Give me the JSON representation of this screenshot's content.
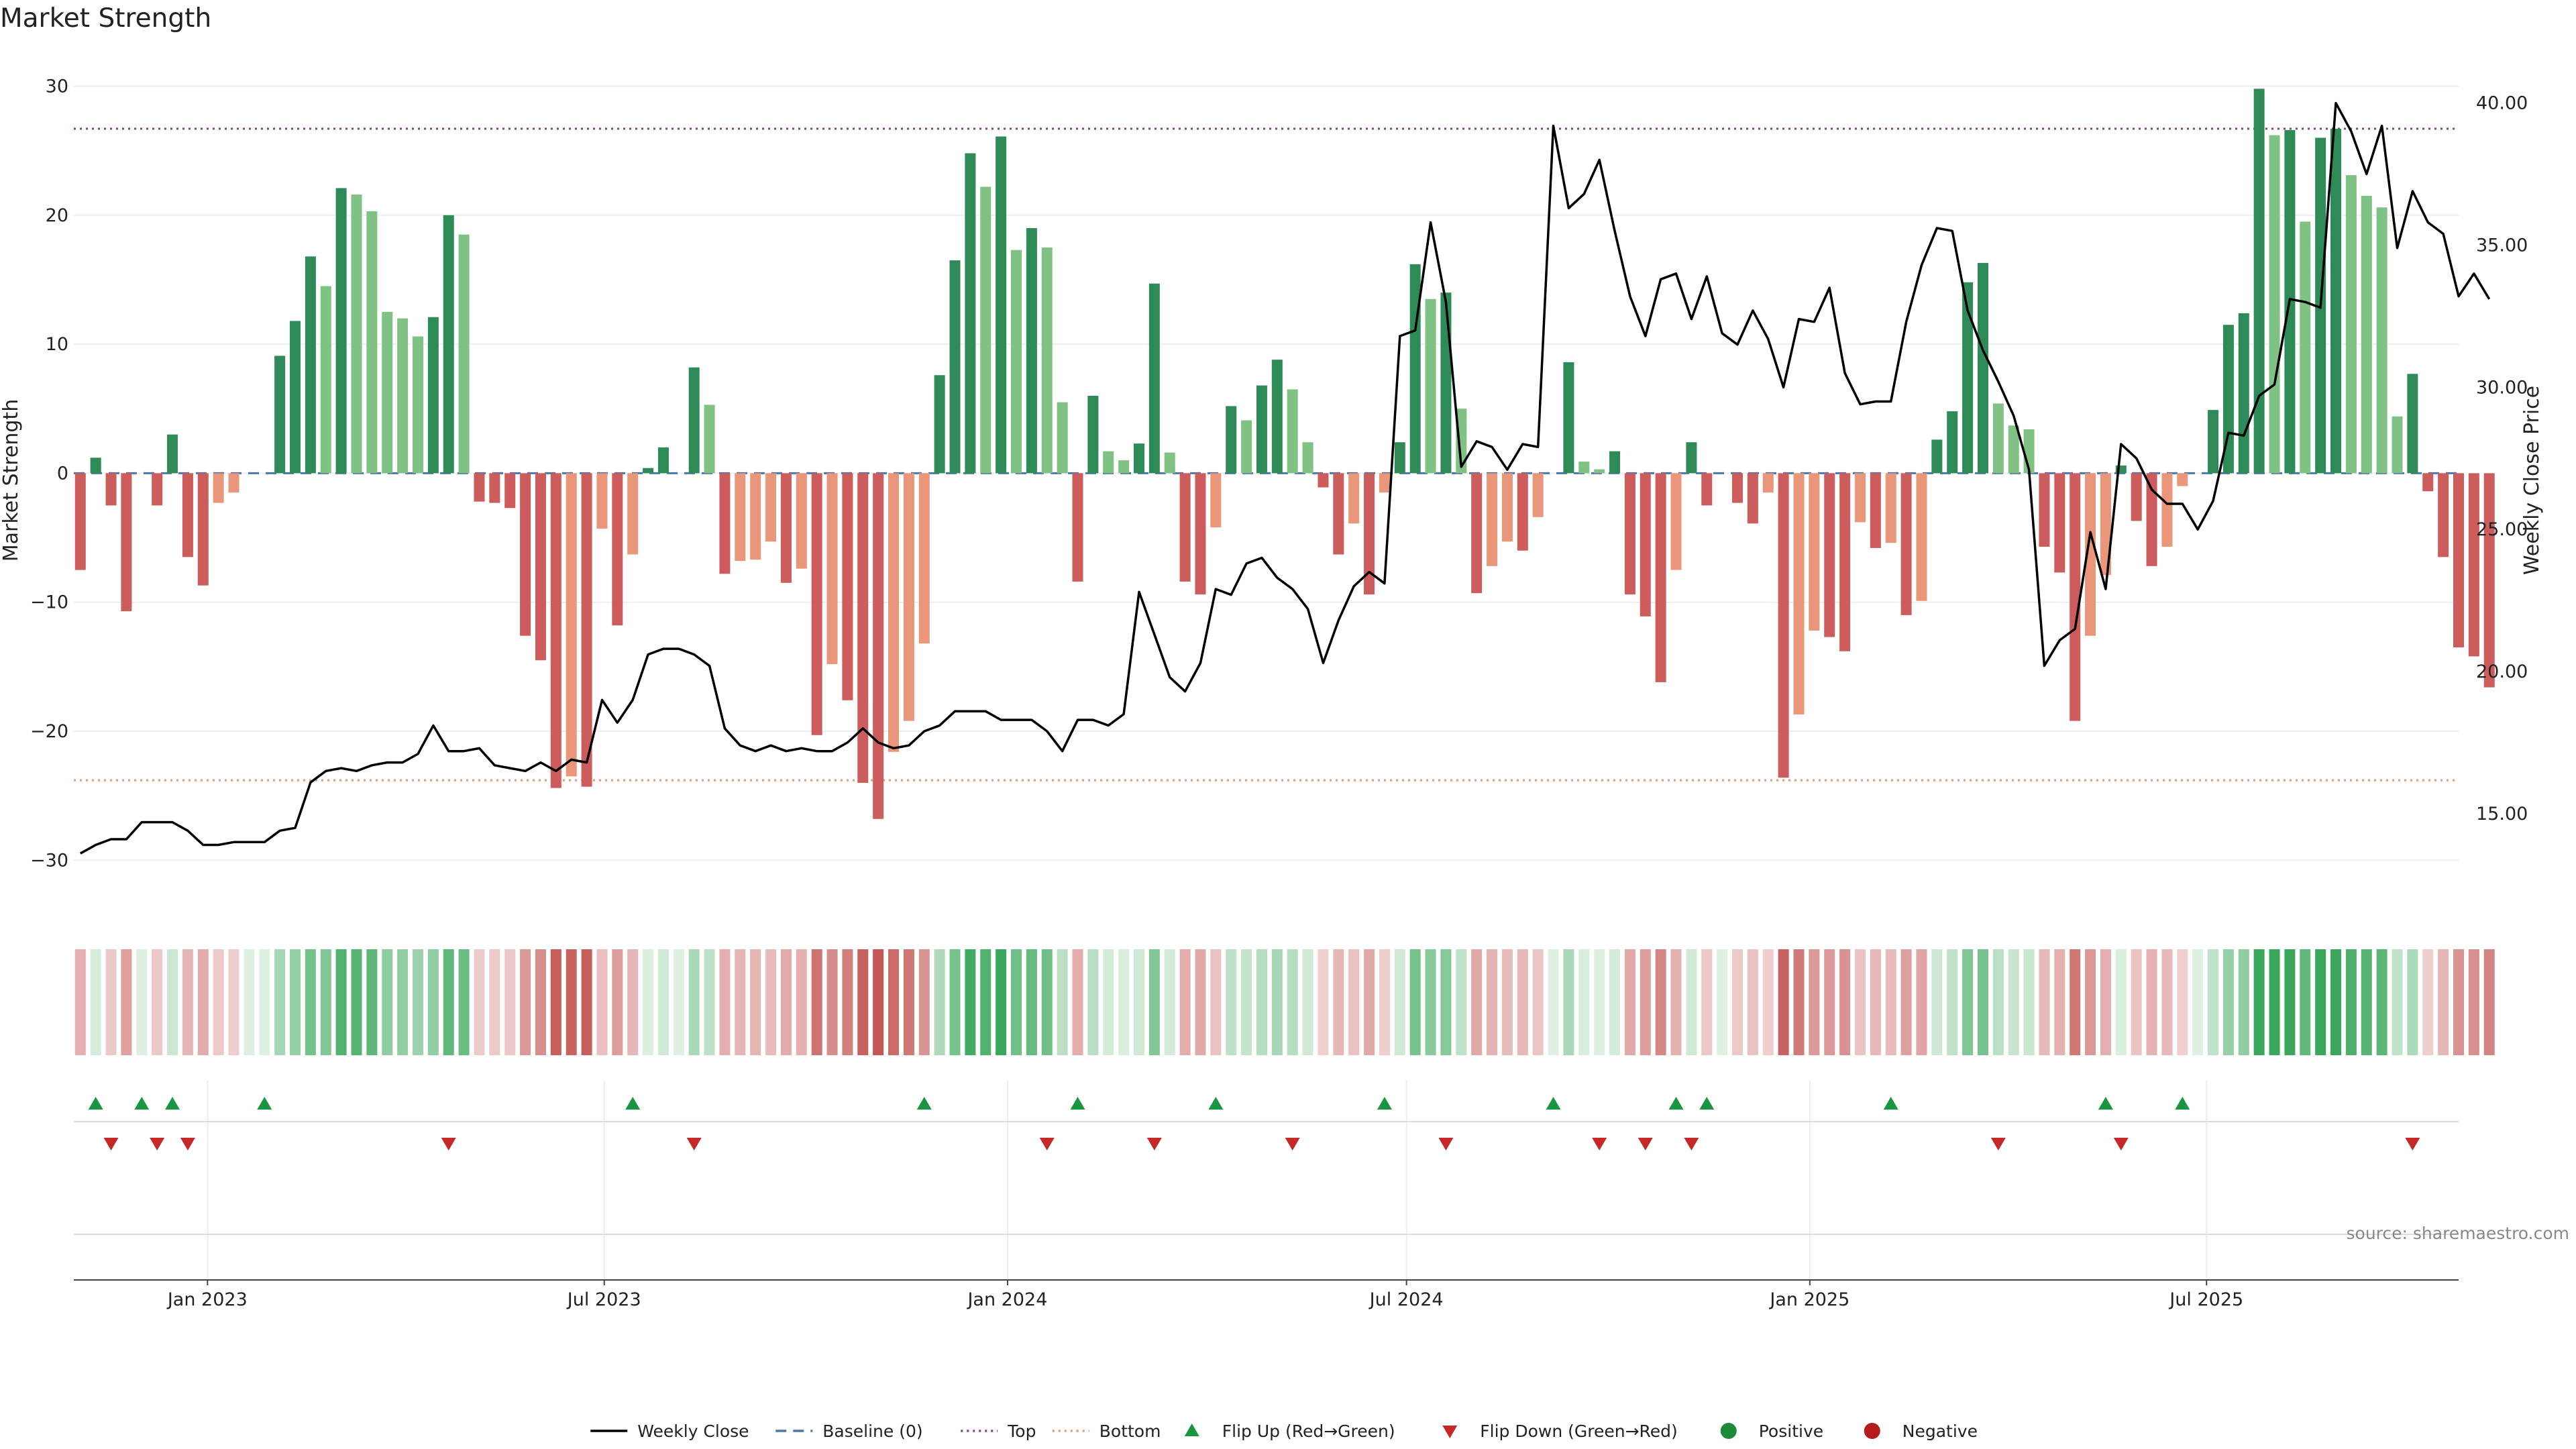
{
  "chart_data": {
    "type": "bar",
    "title": "Market Strength",
    "ylabel": "Market Strength",
    "y2label": "Weekly Close Price",
    "ylim": [
      -33,
      32
    ],
    "y2lim": [
      12.0,
      41.5
    ],
    "yticks": [
      -30,
      -20,
      -10,
      0,
      10,
      20,
      30
    ],
    "yticks_labels": [
      "−30",
      "−20",
      "−10",
      "0",
      "10",
      "20",
      "30"
    ],
    "y2ticks": [
      15,
      20,
      25,
      30,
      35,
      40
    ],
    "y2ticks_labels": [
      "15.00",
      "20.00",
      "25.00",
      "30.00",
      "35.00",
      "40.00"
    ],
    "xlim": [
      "2022-11-01",
      "2025-10-24"
    ],
    "xticks": [
      "2023-01-01",
      "2023-07-01",
      "2024-01-01",
      "2024-07-01",
      "2025-01-01",
      "2025-07-01"
    ],
    "xtick_labels": [
      "Jan 2023",
      "Jul 2023",
      "Jan 2024",
      "Jul 2024",
      "Jan 2025",
      "Jul 2025"
    ],
    "start_date": "2022-11-04",
    "top_level": 26.7,
    "bottom_level": -23.8,
    "strength": [
      -7.5,
      1.2,
      -2.5,
      -10.7,
      0,
      -2.5,
      3,
      -6.5,
      -8.7,
      -2.3,
      -1.5,
      0,
      0,
      9.1,
      11.8,
      16.8,
      14.5,
      22.1,
      21.6,
      20.3,
      12.5,
      12,
      10.6,
      12.1,
      20,
      18.5,
      -2.2,
      -2.3,
      -2.7,
      -12.6,
      -14.5,
      -24.4,
      -23.5,
      -24.3,
      -4.3,
      -11.8,
      -6.3,
      0.4,
      2,
      0,
      8.2,
      5.3,
      -7.8,
      -6.8,
      -6.7,
      -5.3,
      -8.5,
      -7.4,
      -20.3,
      -14.8,
      -17.6,
      -24,
      -26.8,
      -21.6,
      -19.2,
      -13.2,
      7.6,
      16.5,
      24.8,
      22.2,
      26.1,
      17.3,
      19,
      17.5,
      5.5,
      -8.4,
      6,
      1.7,
      1,
      2.3,
      14.7,
      1.6,
      -8.4,
      -9.4,
      -4.2,
      5.2,
      4.1,
      6.8,
      8.8,
      6.5,
      2.4,
      -1.1,
      -6.3,
      -3.9,
      -9.4,
      -1.5,
      2.4,
      16.2,
      13.5,
      14,
      5,
      -9.3,
      -7.2,
      -5.3,
      -6,
      -3.4,
      0,
      8.6,
      0.9,
      0.3,
      1.7,
      -9.4,
      -11.1,
      -16.2,
      -7.5,
      2.4,
      -2.5,
      0,
      -2.3,
      -3.9,
      -1.5,
      -23.6,
      -18.7,
      -12.2,
      -12.7,
      -13.8,
      -3.8,
      -5.8,
      -5.4,
      -11,
      -9.9,
      2.6,
      4.8,
      14.8,
      16.3,
      5.4,
      3.7,
      3.4,
      -5.7,
      -7.7,
      -19.2,
      -12.6,
      -7.9,
      0.6,
      -3.7,
      -7.2,
      -5.7,
      -1,
      0,
      4.9,
      11.5,
      12.4,
      29.8,
      26.2,
      26.6,
      19.5,
      26,
      26.7,
      23.1,
      21.5,
      20.6,
      4.4,
      7.7,
      -1.4,
      -6.5,
      -13.5,
      -14.2,
      -16.6
    ],
    "weekly_close": [
      13.6,
      13.9,
      14.1,
      14.1,
      14.7,
      14.7,
      14.7,
      14.4,
      13.9,
      13.9,
      14.0,
      14.0,
      14.0,
      14.4,
      14.5,
      16.1,
      16.5,
      16.6,
      16.5,
      16.7,
      16.8,
      16.8,
      17.1,
      18.1,
      17.2,
      17.2,
      17.3,
      16.7,
      16.6,
      16.5,
      16.8,
      16.5,
      16.9,
      16.8,
      19.0,
      18.2,
      19.0,
      20.6,
      20.8,
      20.8,
      20.6,
      20.2,
      18.0,
      17.4,
      17.2,
      17.4,
      17.2,
      17.3,
      17.2,
      17.2,
      17.5,
      18.0,
      17.5,
      17.3,
      17.4,
      17.9,
      18.1,
      18.6,
      18.6,
      18.6,
      18.3,
      18.3,
      18.3,
      17.9,
      17.2,
      18.3,
      18.3,
      18.1,
      18.5,
      22.8,
      21.3,
      19.8,
      19.3,
      20.3,
      22.9,
      22.7,
      23.8,
      24.0,
      23.3,
      22.9,
      22.2,
      20.3,
      21.8,
      23.0,
      23.5,
      23.1,
      31.8,
      32.0,
      35.8,
      33.0,
      27.2,
      28.1,
      27.9,
      27.1,
      28.0,
      27.9,
      39.2,
      36.3,
      36.8,
      38.0,
      35.5,
      33.2,
      31.8,
      33.8,
      34.0,
      32.4,
      33.9,
      31.9,
      31.5,
      32.7,
      31.7,
      30.0,
      32.4,
      32.3,
      33.5,
      30.5,
      29.4,
      29.5,
      29.5,
      32.3,
      34.3,
      35.6,
      35.5,
      32.7,
      31.3,
      30.2,
      29.0,
      27.1,
      20.2,
      21.1,
      21.5,
      24.9,
      22.9,
      28.0,
      27.5,
      26.4,
      25.9,
      25.9,
      25.0,
      26.0,
      28.4,
      28.3,
      29.7,
      30.1,
      33.1,
      33.0,
      32.8,
      40.0,
      39.0,
      37.5,
      39.2,
      34.9,
      36.9,
      35.8,
      35.4,
      33.2,
      34.0,
      33.1
    ],
    "flip_up_index": [
      1,
      4,
      6,
      12,
      36,
      55,
      65,
      74,
      85,
      96,
      104,
      106,
      118,
      132,
      137
    ],
    "flip_down_index": [
      2,
      5,
      7,
      24,
      40,
      63,
      70,
      79,
      89,
      99,
      102,
      105,
      125,
      133,
      152
    ],
    "legend": [
      {
        "label": "Weekly Close",
        "kind": "line",
        "color": "#000000"
      },
      {
        "label": "Baseline (0)",
        "kind": "dash",
        "color": "#4c78a8"
      },
      {
        "label": "Top",
        "kind": "dot",
        "color": "#8a3d98"
      },
      {
        "label": "Bottom",
        "kind": "dot",
        "color": "#e8996f"
      },
      {
        "label": "Flip Up (Red→Green)",
        "kind": "tri-up",
        "color": "#1a9641"
      },
      {
        "label": "Flip Down (Green→Red)",
        "kind": "tri-down",
        "color": "#c62828"
      },
      {
        "label": "Positive",
        "kind": "circle",
        "color": "#1e8b3a"
      },
      {
        "label": "Negative",
        "kind": "circle",
        "color": "#b71c1c"
      }
    ],
    "legend_position": "bottom-center",
    "grid": true
  },
  "source_text": "source: sharemaestro.com",
  "colors": {
    "pos_strong": "#2e8b57",
    "pos_weak": "#7fc283",
    "neg_strong": "#cd5c5c",
    "neg_weak": "#e9967a",
    "top_line": "#8a3d98",
    "bottom_line": "#e8996f",
    "baseline": "#4c78a8"
  }
}
